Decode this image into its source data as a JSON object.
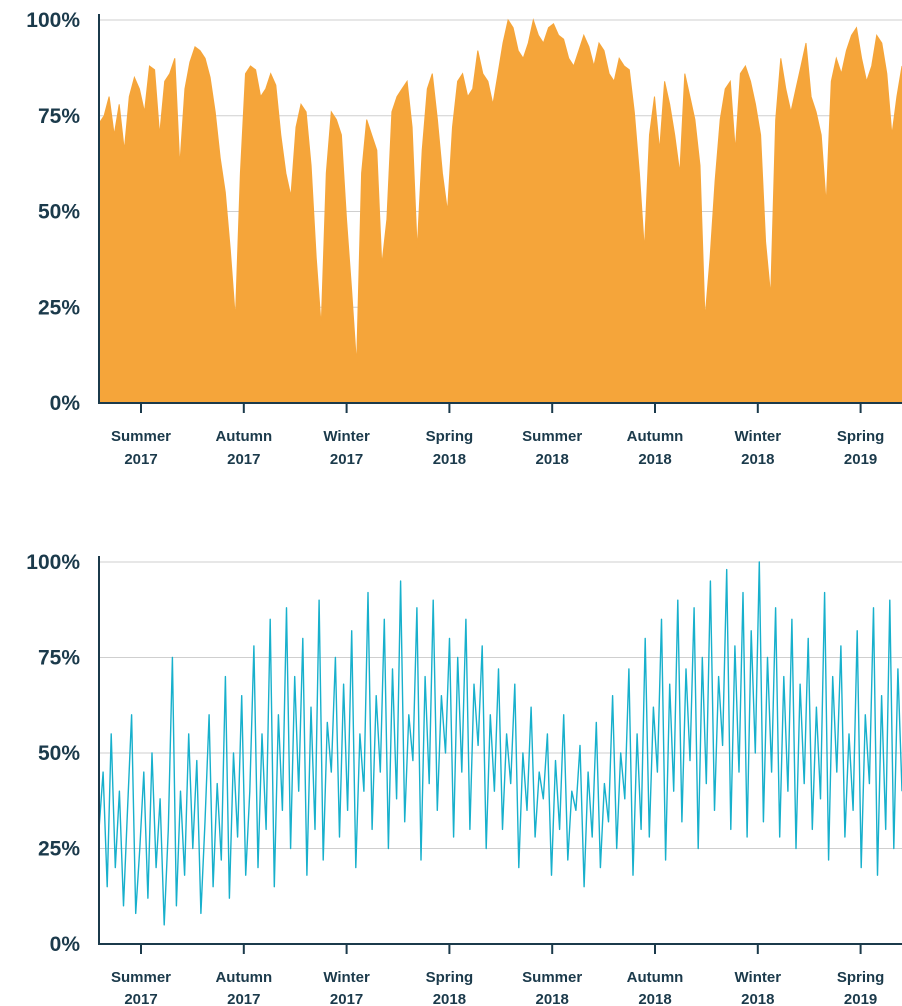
{
  "chart_data": [
    {
      "type": "area",
      "title": "",
      "xlabel": "",
      "ylabel": "",
      "ylim": [
        0,
        100
      ],
      "y_ticks": [
        "0%",
        "25%",
        "50%",
        "75%",
        "100%"
      ],
      "x_ticks": [
        {
          "season": "Summer",
          "year": "2017"
        },
        {
          "season": "Autumn",
          "year": "2017"
        },
        {
          "season": "Winter",
          "year": "2017"
        },
        {
          "season": "Spring",
          "year": "2018"
        },
        {
          "season": "Summer",
          "year": "2018"
        },
        {
          "season": "Autumn",
          "year": "2018"
        },
        {
          "season": "Winter",
          "year": "2018"
        },
        {
          "season": "Spring",
          "year": "2019"
        }
      ],
      "color": "#f5a53a",
      "grid": true,
      "legend": "none",
      "series": [
        {
          "values": [
            73,
            75,
            80,
            70,
            78,
            66,
            80,
            85,
            82,
            76,
            88,
            87,
            70,
            84,
            86,
            90,
            62,
            82,
            89,
            93,
            92,
            90,
            85,
            76,
            64,
            55,
            40,
            22,
            60,
            86,
            88,
            87,
            80,
            82,
            86,
            83,
            70,
            60,
            54,
            72,
            78,
            76,
            62,
            38,
            20,
            60,
            76,
            74,
            70,
            48,
            30,
            10,
            60,
            74,
            70,
            66,
            36,
            48,
            76,
            80,
            82,
            84,
            72,
            40,
            66,
            82,
            86,
            74,
            60,
            50,
            72,
            84,
            86,
            80,
            82,
            92,
            86,
            84,
            78,
            86,
            94,
            100,
            98,
            92,
            90,
            94,
            100,
            96,
            94,
            98,
            99,
            96,
            95,
            90,
            88,
            92,
            96,
            93,
            88,
            94,
            92,
            86,
            84,
            90,
            88,
            87,
            76,
            60,
            40,
            70,
            80,
            66,
            84,
            78,
            70,
            60,
            86,
            80,
            74,
            62,
            22,
            38,
            58,
            74,
            82,
            84,
            66,
            86,
            88,
            84,
            78,
            70,
            42,
            28,
            74,
            90,
            82,
            76,
            82,
            88,
            94,
            80,
            76,
            70,
            52,
            84,
            90,
            86,
            92,
            96,
            98,
            90,
            84,
            88,
            96,
            94,
            86,
            70,
            80,
            88
          ]
        }
      ]
    },
    {
      "type": "line",
      "title": "",
      "xlabel": "",
      "ylabel": "",
      "ylim": [
        0,
        100
      ],
      "y_ticks": [
        "0%",
        "25%",
        "50%",
        "75%",
        "100%"
      ],
      "x_ticks": [
        {
          "season": "Summer",
          "year": "2017"
        },
        {
          "season": "Autumn",
          "year": "2017"
        },
        {
          "season": "Winter",
          "year": "2017"
        },
        {
          "season": "Spring",
          "year": "2018"
        },
        {
          "season": "Summer",
          "year": "2018"
        },
        {
          "season": "Autumn",
          "year": "2018"
        },
        {
          "season": "Winter",
          "year": "2018"
        },
        {
          "season": "Spring",
          "year": "2019"
        }
      ],
      "color": "#17b0cc",
      "grid": true,
      "legend": "none",
      "series": [
        {
          "values": [
            30,
            45,
            15,
            55,
            20,
            40,
            10,
            35,
            60,
            8,
            25,
            45,
            12,
            50,
            20,
            38,
            5,
            30,
            75,
            10,
            40,
            18,
            55,
            25,
            48,
            8,
            32,
            60,
            15,
            42,
            22,
            70,
            12,
            50,
            28,
            65,
            18,
            40,
            78,
            20,
            55,
            30,
            85,
            15,
            60,
            35,
            88,
            25,
            70,
            40,
            80,
            18,
            62,
            30,
            90,
            22,
            58,
            45,
            75,
            28,
            68,
            35,
            82,
            20,
            55,
            40,
            92,
            30,
            65,
            45,
            85,
            25,
            72,
            38,
            95,
            32,
            60,
            48,
            88,
            22,
            70,
            42,
            90,
            35,
            65,
            50,
            80,
            28,
            75,
            45,
            85,
            30,
            68,
            52,
            78,
            25,
            60,
            40,
            72,
            30,
            55,
            42,
            68,
            20,
            50,
            35,
            62,
            28,
            45,
            38,
            55,
            18,
            48,
            30,
            60,
            22,
            40,
            35,
            52,
            15,
            45,
            28,
            58,
            20,
            42,
            32,
            65,
            25,
            50,
            38,
            72,
            18,
            55,
            30,
            80,
            28,
            62,
            45,
            85,
            22,
            68,
            40,
            90,
            32,
            72,
            48,
            88,
            25,
            75,
            42,
            95,
            35,
            70,
            52,
            98,
            30,
            78,
            45,
            92,
            28,
            82,
            50,
            100,
            32,
            75,
            45,
            88,
            28,
            70,
            40,
            85,
            25,
            68,
            42,
            80,
            30,
            62,
            38,
            92,
            22,
            70,
            45,
            78,
            28,
            55,
            35,
            82,
            20,
            60,
            42,
            88,
            18,
            65,
            30,
            90,
            25,
            72,
            40
          ]
        }
      ]
    }
  ]
}
